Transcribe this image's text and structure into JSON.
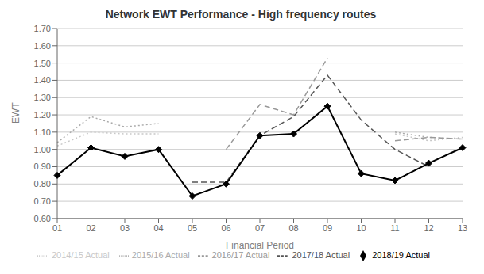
{
  "chart_data": {
    "type": "line",
    "title": "Network EWT Performance - High frequency routes",
    "xlabel": "Financial Period",
    "ylabel": "EWT",
    "categories": [
      "01",
      "02",
      "03",
      "04",
      "05",
      "06",
      "07",
      "08",
      "09",
      "10",
      "11",
      "12",
      "13"
    ],
    "ylim": [
      0.6,
      1.7
    ],
    "yticks": [
      {
        "value": 0.6,
        "label": "0.60"
      },
      {
        "value": 0.7,
        "label": "0.70"
      },
      {
        "value": 0.8,
        "label": "0.80"
      },
      {
        "value": 0.9,
        "label": "0.90"
      },
      {
        "value": 1.0,
        "label": "1.00"
      },
      {
        "value": 1.1,
        "label": "1.10"
      },
      {
        "value": 1.2,
        "label": "1.20"
      },
      {
        "value": 1.3,
        "label": "1.30"
      },
      {
        "value": 1.4,
        "label": "1.40"
      },
      {
        "value": 1.5,
        "label": "1.50"
      },
      {
        "value": 1.6,
        "label": "1.60"
      },
      {
        "value": 1.7,
        "label": "1.70"
      }
    ],
    "grid": true,
    "legend": "bottom",
    "series": [
      {
        "name": "2014/15 Actual",
        "color": "#c8c8c8",
        "line_style": "dotted",
        "values": [
          1.02,
          1.1,
          1.09,
          1.09,
          null,
          null,
          null,
          null,
          null,
          null,
          1.09,
          1.05,
          1.07
        ]
      },
      {
        "name": "2015/16 Actual",
        "color": "#aaaaaa",
        "line_style": "dotted",
        "values": [
          1.04,
          1.19,
          1.13,
          1.15,
          null,
          null,
          null,
          null,
          null,
          null,
          1.1,
          1.07,
          1.06
        ]
      },
      {
        "name": "2016/17 Actual",
        "color": "#999999",
        "line_style": "dashed",
        "values": [
          null,
          null,
          null,
          null,
          null,
          1.0,
          1.26,
          1.2,
          1.53,
          null,
          1.05,
          1.07,
          1.06
        ]
      },
      {
        "name": "2017/18 Actual",
        "color": "#555555",
        "line_style": "dashed",
        "values": [
          null,
          null,
          null,
          null,
          0.81,
          0.81,
          1.08,
          1.19,
          1.43,
          1.17,
          1.0,
          0.9,
          null
        ]
      },
      {
        "name": "2018/19 Actual",
        "color": "#000000",
        "line_style": "solid",
        "marker": "diamond",
        "values": [
          0.85,
          1.01,
          0.96,
          1.0,
          0.73,
          0.8,
          1.08,
          1.09,
          1.25,
          0.86,
          0.82,
          0.92,
          1.01
        ]
      }
    ]
  }
}
